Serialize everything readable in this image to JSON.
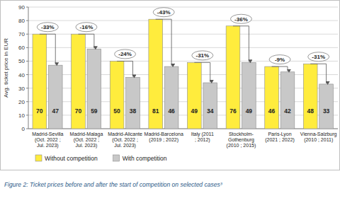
{
  "chart_data": {
    "type": "bar",
    "title": "Figure 2: Ticket prices before and after the start of competition on selected cases³",
    "y_label": "Avg. ticket price in EUR",
    "categories": [
      "Madrid-Sevilla\n(Oct. 2022 ;\nJul. 2023)",
      "Madrid-Malaga\n(Oct. 2022 ;\nJul. 2023)",
      "Madrid-Alicante\n(Oct. 2022 ;\nJul. 2023)",
      "Madrid-Barcelona\n(2019 ; 2022)",
      "Italy (2011\n; 2012)",
      "Stockholm-\nGothenburg\n(2010 ; 2015)",
      "Paris-Lyon\n(2021 ; 2022)",
      "Vienna-Salzburg\n(2010 ; 2011)"
    ],
    "series": [
      {
        "name": "Without competition",
        "color": "#ffec3d",
        "values": [
          70,
          70,
          50,
          81,
          49,
          76,
          46,
          48
        ]
      },
      {
        "name": "With competition",
        "color": "#c8c8c8",
        "values": [
          47,
          59,
          38,
          46,
          34,
          49,
          42,
          33
        ]
      }
    ],
    "annotations": [
      "-33%",
      "-16%",
      "-24%",
      "-43%",
      "-31%",
      "-36%",
      "-9%",
      "-31%"
    ],
    "ylim": [
      0,
      90
    ],
    "yticks": [
      0,
      10,
      20,
      30,
      40,
      50,
      60,
      70,
      80,
      90
    ],
    "grid": true,
    "legend": "bottom-left",
    "data_labels": true
  }
}
